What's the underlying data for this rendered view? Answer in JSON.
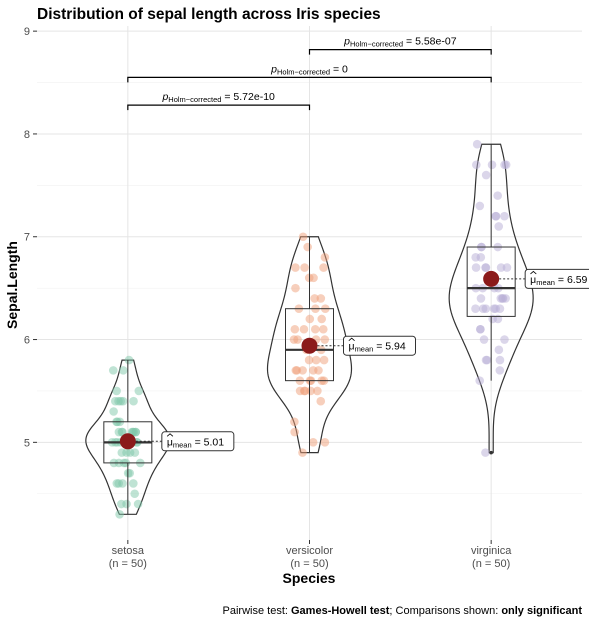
{
  "chart_data": {
    "type": "violin-box-jitter",
    "title": "Distribution of sepal length across Iris species",
    "xlabel": "Species",
    "ylabel": "Sepal.Length",
    "ylim": [
      4.05,
      9.05
    ],
    "yticks": [
      5,
      6,
      7,
      8,
      9
    ],
    "grid": true,
    "caption": {
      "prefix": "Pairwise test: ",
      "test": "Games-Howell test",
      "middle": "; Comparisons shown: ",
      "shown": "only significant"
    },
    "groups": [
      {
        "name": "setosa",
        "n_label": "(n = 50)",
        "color": "#7fc8a9",
        "mean": 5.01,
        "mean_label": "5.01",
        "box": {
          "min": 4.3,
          "q1": 4.8,
          "median": 5.0,
          "q3": 5.2,
          "max": 5.8
        },
        "points": [
          4.3,
          4.4,
          4.4,
          4.4,
          4.5,
          4.6,
          4.6,
          4.6,
          4.6,
          4.7,
          4.7,
          4.8,
          4.8,
          4.8,
          4.8,
          4.8,
          4.9,
          4.9,
          4.9,
          4.9,
          5.0,
          5.0,
          5.0,
          5.0,
          5.0,
          5.0,
          5.0,
          5.0,
          5.1,
          5.1,
          5.1,
          5.1,
          5.1,
          5.1,
          5.1,
          5.1,
          5.2,
          5.2,
          5.2,
          5.3,
          5.4,
          5.4,
          5.4,
          5.4,
          5.4,
          5.5,
          5.5,
          5.7,
          5.7,
          5.8
        ]
      },
      {
        "name": "versicolor",
        "n_label": "(n = 50)",
        "color": "#f0a07a",
        "mean": 5.94,
        "mean_label": "5.94",
        "box": {
          "min": 4.9,
          "q1": 5.6,
          "median": 5.9,
          "q3": 6.3,
          "max": 7.0
        },
        "points": [
          4.9,
          5.0,
          5.0,
          5.1,
          5.2,
          5.4,
          5.5,
          5.5,
          5.5,
          5.5,
          5.5,
          5.6,
          5.6,
          5.6,
          5.6,
          5.6,
          5.7,
          5.7,
          5.7,
          5.7,
          5.7,
          5.8,
          5.8,
          5.8,
          5.9,
          5.9,
          6.0,
          6.0,
          6.0,
          6.0,
          6.1,
          6.1,
          6.1,
          6.1,
          6.2,
          6.2,
          6.3,
          6.3,
          6.3,
          6.4,
          6.4,
          6.5,
          6.6,
          6.6,
          6.7,
          6.7,
          6.7,
          6.8,
          6.9,
          7.0
        ]
      },
      {
        "name": "virginica",
        "n_label": "(n = 50)",
        "color": "#b7aed6",
        "mean": 6.59,
        "mean_label": "6.59",
        "box": {
          "min": 5.6,
          "q1": 6.225,
          "median": 6.5,
          "q3": 6.9,
          "max": 7.9
        },
        "outliers": [
          4.9
        ],
        "points": [
          4.9,
          5.6,
          5.7,
          5.8,
          5.8,
          5.8,
          5.9,
          6.0,
          6.0,
          6.1,
          6.1,
          6.2,
          6.2,
          6.3,
          6.3,
          6.3,
          6.3,
          6.3,
          6.3,
          6.4,
          6.4,
          6.4,
          6.4,
          6.4,
          6.5,
          6.5,
          6.5,
          6.5,
          6.7,
          6.7,
          6.7,
          6.7,
          6.7,
          6.8,
          6.8,
          6.9,
          6.9,
          6.9,
          7.1,
          7.2,
          7.2,
          7.2,
          7.3,
          7.4,
          7.6,
          7.7,
          7.7,
          7.7,
          7.7,
          7.9
        ]
      }
    ],
    "comparisons": [
      {
        "from": 0,
        "to": 1,
        "y": 8.28,
        "p_prefix": "p",
        "p_sub": "Holm−corrected",
        "p_value": " = 5.72e-10"
      },
      {
        "from": 0,
        "to": 2,
        "y": 8.55,
        "p_prefix": "p",
        "p_sub": "Holm−corrected",
        "p_value": " = 0"
      },
      {
        "from": 1,
        "to": 2,
        "y": 8.82,
        "p_prefix": "p",
        "p_sub": "Holm−corrected",
        "p_value": " = 5.58e-07"
      }
    ],
    "mean_label_prefix": "μ",
    "mean_label_sub": "mean",
    "mean_label_eq": " = "
  }
}
